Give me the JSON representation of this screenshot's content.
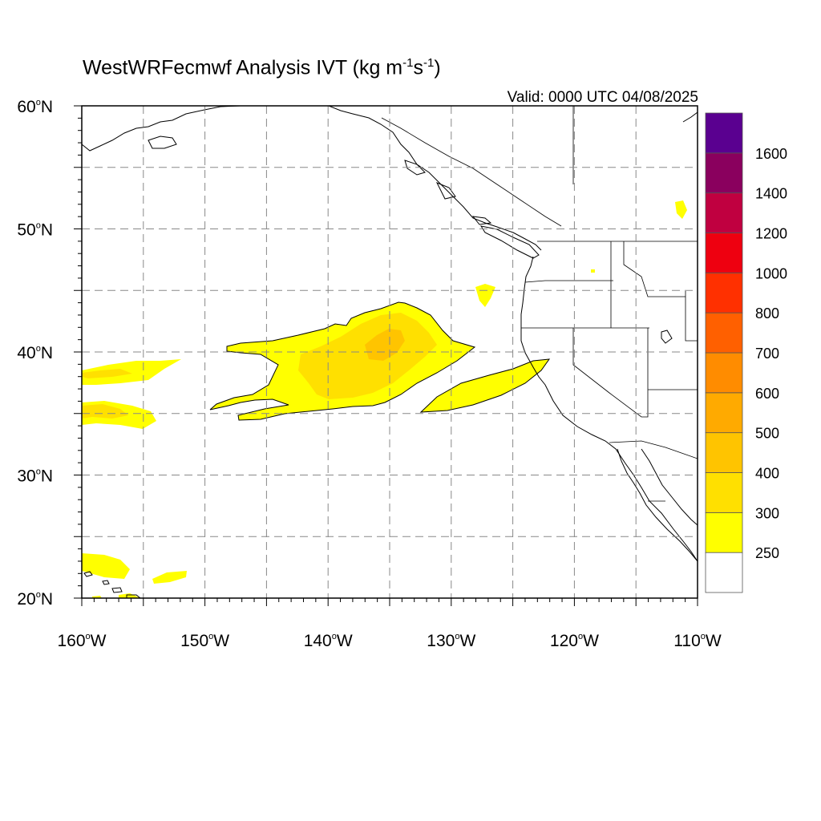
{
  "title": {
    "main": "WestWRFecmwf Analysis IVT (kg m",
    "exp1": "-1",
    "mid": "s",
    "exp2": "-1",
    "end": ")"
  },
  "valid_text": "Valid: 0000 UTC 04/08/2025",
  "map": {
    "lon_range": [
      -160,
      -110
    ],
    "lat_range": [
      20,
      60
    ],
    "lat_ticks": [
      {
        "value": 20,
        "label": "20",
        "hemi": "N"
      },
      {
        "value": 30,
        "label": "30",
        "hemi": "N"
      },
      {
        "value": 40,
        "label": "40",
        "hemi": "N"
      },
      {
        "value": 50,
        "label": "50",
        "hemi": "N"
      },
      {
        "value": 60,
        "label": "60",
        "hemi": "N"
      }
    ],
    "lon_ticks": [
      {
        "value": -160,
        "label": "160",
        "hemi": "W"
      },
      {
        "value": -150,
        "label": "150",
        "hemi": "W"
      },
      {
        "value": -140,
        "label": "140",
        "hemi": "W"
      },
      {
        "value": -130,
        "label": "130",
        "hemi": "W"
      },
      {
        "value": -120,
        "label": "120",
        "hemi": "W"
      },
      {
        "value": -110,
        "label": "110",
        "hemi": "W"
      }
    ],
    "gridlines": "dashed every 5 degrees"
  },
  "colorbar": {
    "labels": [
      "250",
      "300",
      "400",
      "500",
      "600",
      "700",
      "800",
      "1000",
      "1200",
      "1400",
      "1600"
    ],
    "colors": [
      "#ffffff",
      "#ffff00",
      "#ffe000",
      "#ffc400",
      "#ffaa00",
      "#ff8c00",
      "#ff6000",
      "#ff3000",
      "#ee0010",
      "#c00040",
      "#8a005e",
      "#5a0090"
    ]
  }
}
